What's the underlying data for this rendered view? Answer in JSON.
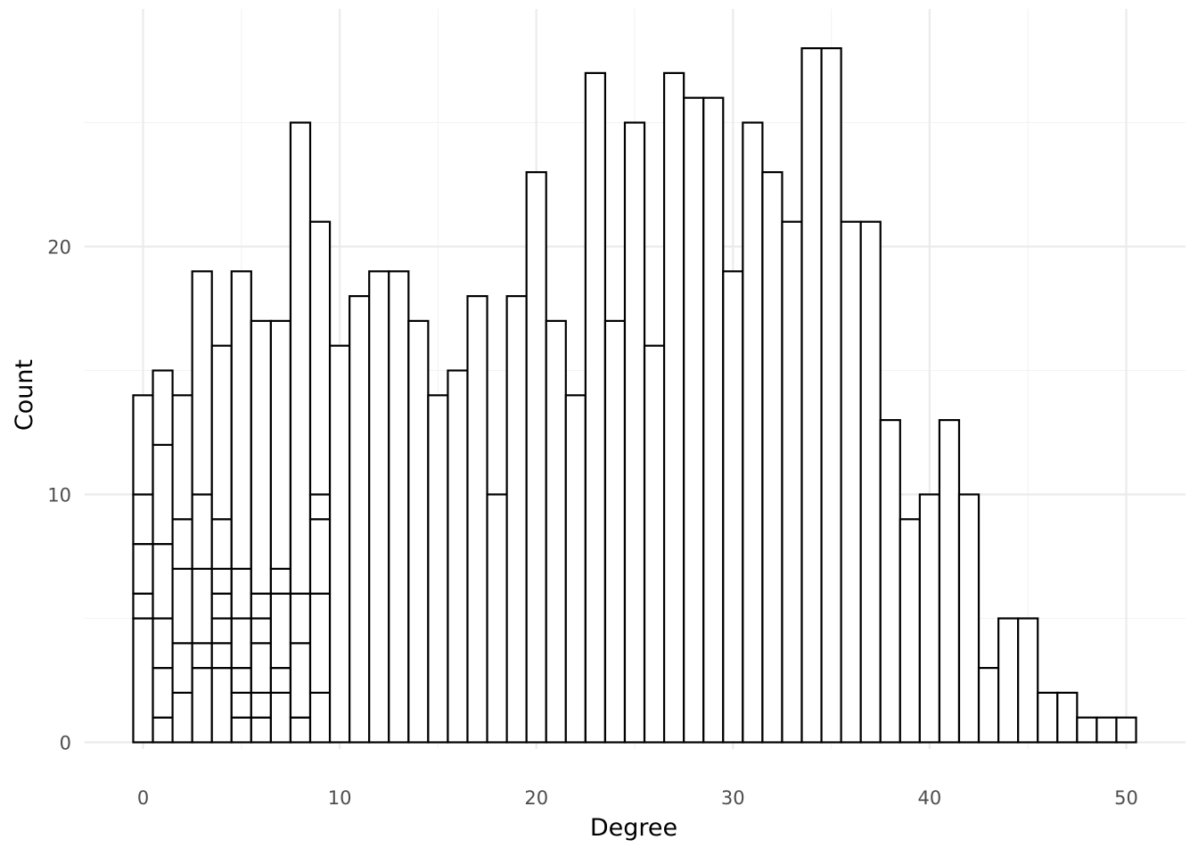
{
  "chart_data": {
    "type": "bar",
    "subtype": "stacked histogram (bins of width 1, segments outlined, white fill)",
    "title": "",
    "xlabel": "Degree",
    "ylabel": "Count",
    "xlim": [
      -0.5,
      50.5
    ],
    "ylim": [
      0,
      28
    ],
    "x_ticks": [
      0,
      10,
      20,
      30,
      40,
      50
    ],
    "y_ticks": [
      0,
      10,
      20
    ],
    "grid": "on (major and minor)",
    "legend": "none",
    "colors": {
      "fill": "#ffffff",
      "outline": "#000000",
      "grid": "#ebebeb",
      "tick_text": "#4d4d4d"
    },
    "x": [
      0,
      1,
      2,
      3,
      4,
      5,
      6,
      7,
      8,
      9,
      10,
      11,
      12,
      13,
      14,
      15,
      16,
      17,
      18,
      19,
      20,
      21,
      22,
      23,
      24,
      25,
      26,
      27,
      28,
      29,
      30,
      31,
      32,
      33,
      34,
      35,
      36,
      37,
      38,
      39,
      40,
      41,
      42,
      43,
      44,
      45,
      46,
      47,
      48,
      49,
      50
    ],
    "values": [
      14,
      15,
      14,
      19,
      16,
      19,
      17,
      17,
      25,
      21,
      16,
      18,
      19,
      19,
      17,
      14,
      15,
      18,
      10,
      18,
      23,
      17,
      14,
      27,
      17,
      25,
      16,
      27,
      26,
      26,
      19,
      25,
      23,
      21,
      28,
      28,
      21,
      21,
      13,
      9,
      10,
      13,
      10,
      3,
      5,
      5,
      2,
      2,
      1,
      1,
      1
    ],
    "stack_breaks": [
      [
        5,
        6,
        8,
        10
      ],
      [
        1,
        3,
        5,
        8,
        12
      ],
      [
        2,
        4,
        7,
        9
      ],
      [
        3,
        4,
        7,
        10
      ],
      [
        3,
        4,
        5,
        6,
        7,
        9
      ],
      [
        1,
        2,
        3,
        5,
        7
      ],
      [
        1,
        2,
        4,
        5,
        6
      ],
      [
        2,
        3,
        6,
        7
      ],
      [
        1,
        4,
        6
      ],
      [
        2,
        6,
        9,
        10
      ],
      [],
      [],
      [],
      [],
      [],
      [],
      [],
      [],
      [],
      [],
      [],
      [],
      [],
      [],
      [],
      [],
      [],
      [],
      [],
      [],
      [],
      [],
      [],
      [],
      [],
      [],
      [],
      [],
      [],
      [],
      [],
      [],
      [],
      [],
      [],
      [],
      [],
      [],
      [],
      [],
      []
    ]
  }
}
